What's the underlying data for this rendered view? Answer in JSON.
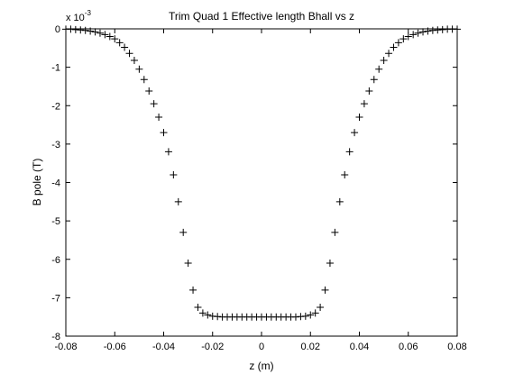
{
  "chart_data": {
    "type": "scatter",
    "title": "Trim Quad 1 Effective length Bhall vs z",
    "xlabel": "z (m)",
    "ylabel": "B pole (T)",
    "exponent_label": {
      "base": "x 10",
      "power": "-3"
    },
    "xlim": [
      -0.08,
      0.08
    ],
    "ylim": [
      -8,
      0
    ],
    "y_scale_factor": 0.001,
    "grid": false,
    "legend": "none",
    "marker": "+",
    "marker_color": "#000000",
    "xticks": [
      -0.08,
      -0.06,
      -0.04,
      -0.02,
      0,
      0.02,
      0.04,
      0.06,
      0.08
    ],
    "xtick_labels": [
      "-0.08",
      "-0.06",
      "-0.04",
      "-0.02",
      "0",
      "0.02",
      "0.04",
      "0.06",
      "0.08"
    ],
    "yticks": [
      0,
      -1,
      -2,
      -3,
      -4,
      -5,
      -6,
      -7,
      -8
    ],
    "ytick_labels": [
      "0",
      "-1",
      "-2",
      "-3",
      "-4",
      "-5",
      "-6",
      "-7",
      "-8"
    ],
    "series": [
      {
        "marker": "+",
        "x": [
          -0.08,
          -0.078,
          -0.076,
          -0.074,
          -0.072,
          -0.07,
          -0.068,
          -0.066,
          -0.064,
          -0.062,
          -0.06,
          -0.058,
          -0.056,
          -0.054,
          -0.052,
          -0.05,
          -0.048,
          -0.046,
          -0.044,
          -0.042,
          -0.04,
          -0.038,
          -0.036,
          -0.034,
          -0.032,
          -0.03,
          -0.028,
          -0.026,
          -0.024,
          -0.022,
          -0.02,
          -0.018,
          -0.016,
          -0.014,
          -0.012,
          -0.01,
          -0.008,
          -0.006,
          -0.004,
          -0.002,
          0,
          0.002,
          0.004,
          0.006,
          0.008,
          0.01,
          0.012,
          0.014,
          0.016,
          0.018,
          0.02,
          0.022,
          0.024,
          0.026,
          0.028,
          0.03,
          0.032,
          0.034,
          0.036,
          0.038,
          0.04,
          0.042,
          0.044,
          0.046,
          0.048,
          0.05,
          0.052,
          0.054,
          0.056,
          0.058,
          0.06,
          0.062,
          0.064,
          0.066,
          0.068,
          0.07,
          0.072,
          0.074,
          0.076,
          0.078,
          0.08
        ],
        "y": [
          -0.01,
          -0.01,
          -0.02,
          -0.03,
          -0.04,
          -0.06,
          -0.08,
          -0.11,
          -0.15,
          -0.2,
          -0.26,
          -0.36,
          -0.48,
          -0.64,
          -0.82,
          -1.05,
          -1.32,
          -1.62,
          -1.95,
          -2.3,
          -2.7,
          -3.2,
          -3.8,
          -4.5,
          -5.3,
          -6.1,
          -6.8,
          -7.25,
          -7.4,
          -7.45,
          -7.48,
          -7.49,
          -7.5,
          -7.5,
          -7.5,
          -7.5,
          -7.5,
          -7.5,
          -7.5,
          -7.5,
          -7.5,
          -7.5,
          -7.5,
          -7.5,
          -7.5,
          -7.5,
          -7.5,
          -7.5,
          -7.49,
          -7.48,
          -7.45,
          -7.4,
          -7.25,
          -6.8,
          -6.1,
          -5.3,
          -4.5,
          -3.8,
          -3.2,
          -2.7,
          -2.3,
          -1.95,
          -1.62,
          -1.32,
          -1.05,
          -0.82,
          -0.64,
          -0.48,
          -0.36,
          -0.26,
          -0.2,
          -0.15,
          -0.11,
          -0.08,
          -0.06,
          -0.04,
          -0.03,
          -0.02,
          -0.01,
          -0.01,
          -0.01
        ]
      }
    ]
  }
}
